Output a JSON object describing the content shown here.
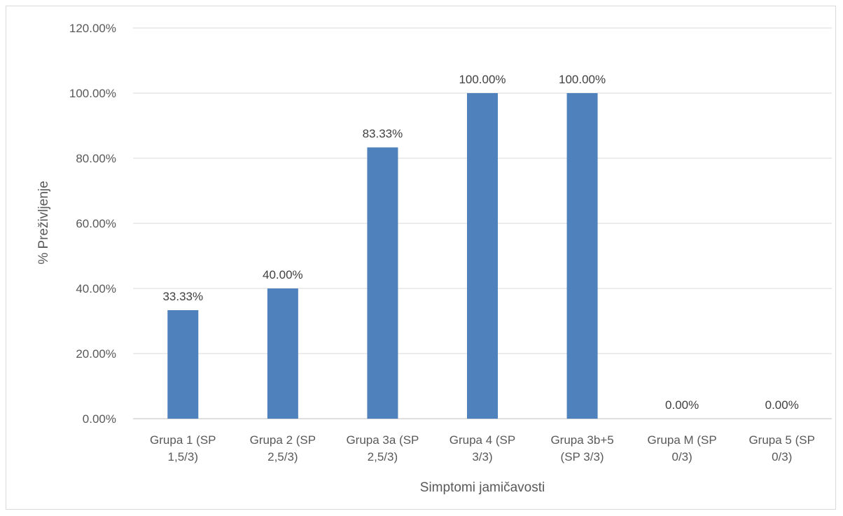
{
  "chart_data": {
    "type": "bar",
    "title": "",
    "xlabel": "Simptomi jamičavosti",
    "ylabel": "% Preživljenje",
    "ylim": [
      0,
      120
    ],
    "y_ticks": [
      "0.00%",
      "20.00%",
      "40.00%",
      "60.00%",
      "80.00%",
      "100.00%",
      "120.00%"
    ],
    "y_tick_values": [
      0,
      20,
      40,
      60,
      80,
      100,
      120
    ],
    "grid": true,
    "legend": "none",
    "bar_color": "#4f81bd",
    "categories": [
      [
        "Grupa 1 (SP",
        "1,5/3)"
      ],
      [
        "Grupa 2 (SP",
        "2,5/3)"
      ],
      [
        "Grupa 3a (SP",
        "2,5/3)"
      ],
      [
        "Grupa 4 (SP",
        "3/3)"
      ],
      [
        "Grupa 3b+5",
        "(SP 3/3)"
      ],
      [
        "Grupa M (SP",
        "0/3)"
      ],
      [
        "Grupa 5 (SP",
        "0/3)"
      ]
    ],
    "values": [
      33.33,
      40.0,
      83.33,
      100.0,
      100.0,
      0.0,
      0.0
    ],
    "data_labels": [
      "33.33%",
      "40.00%",
      "83.33%",
      "100.00%",
      "100.00%",
      "0.00%",
      "0.00%"
    ]
  }
}
